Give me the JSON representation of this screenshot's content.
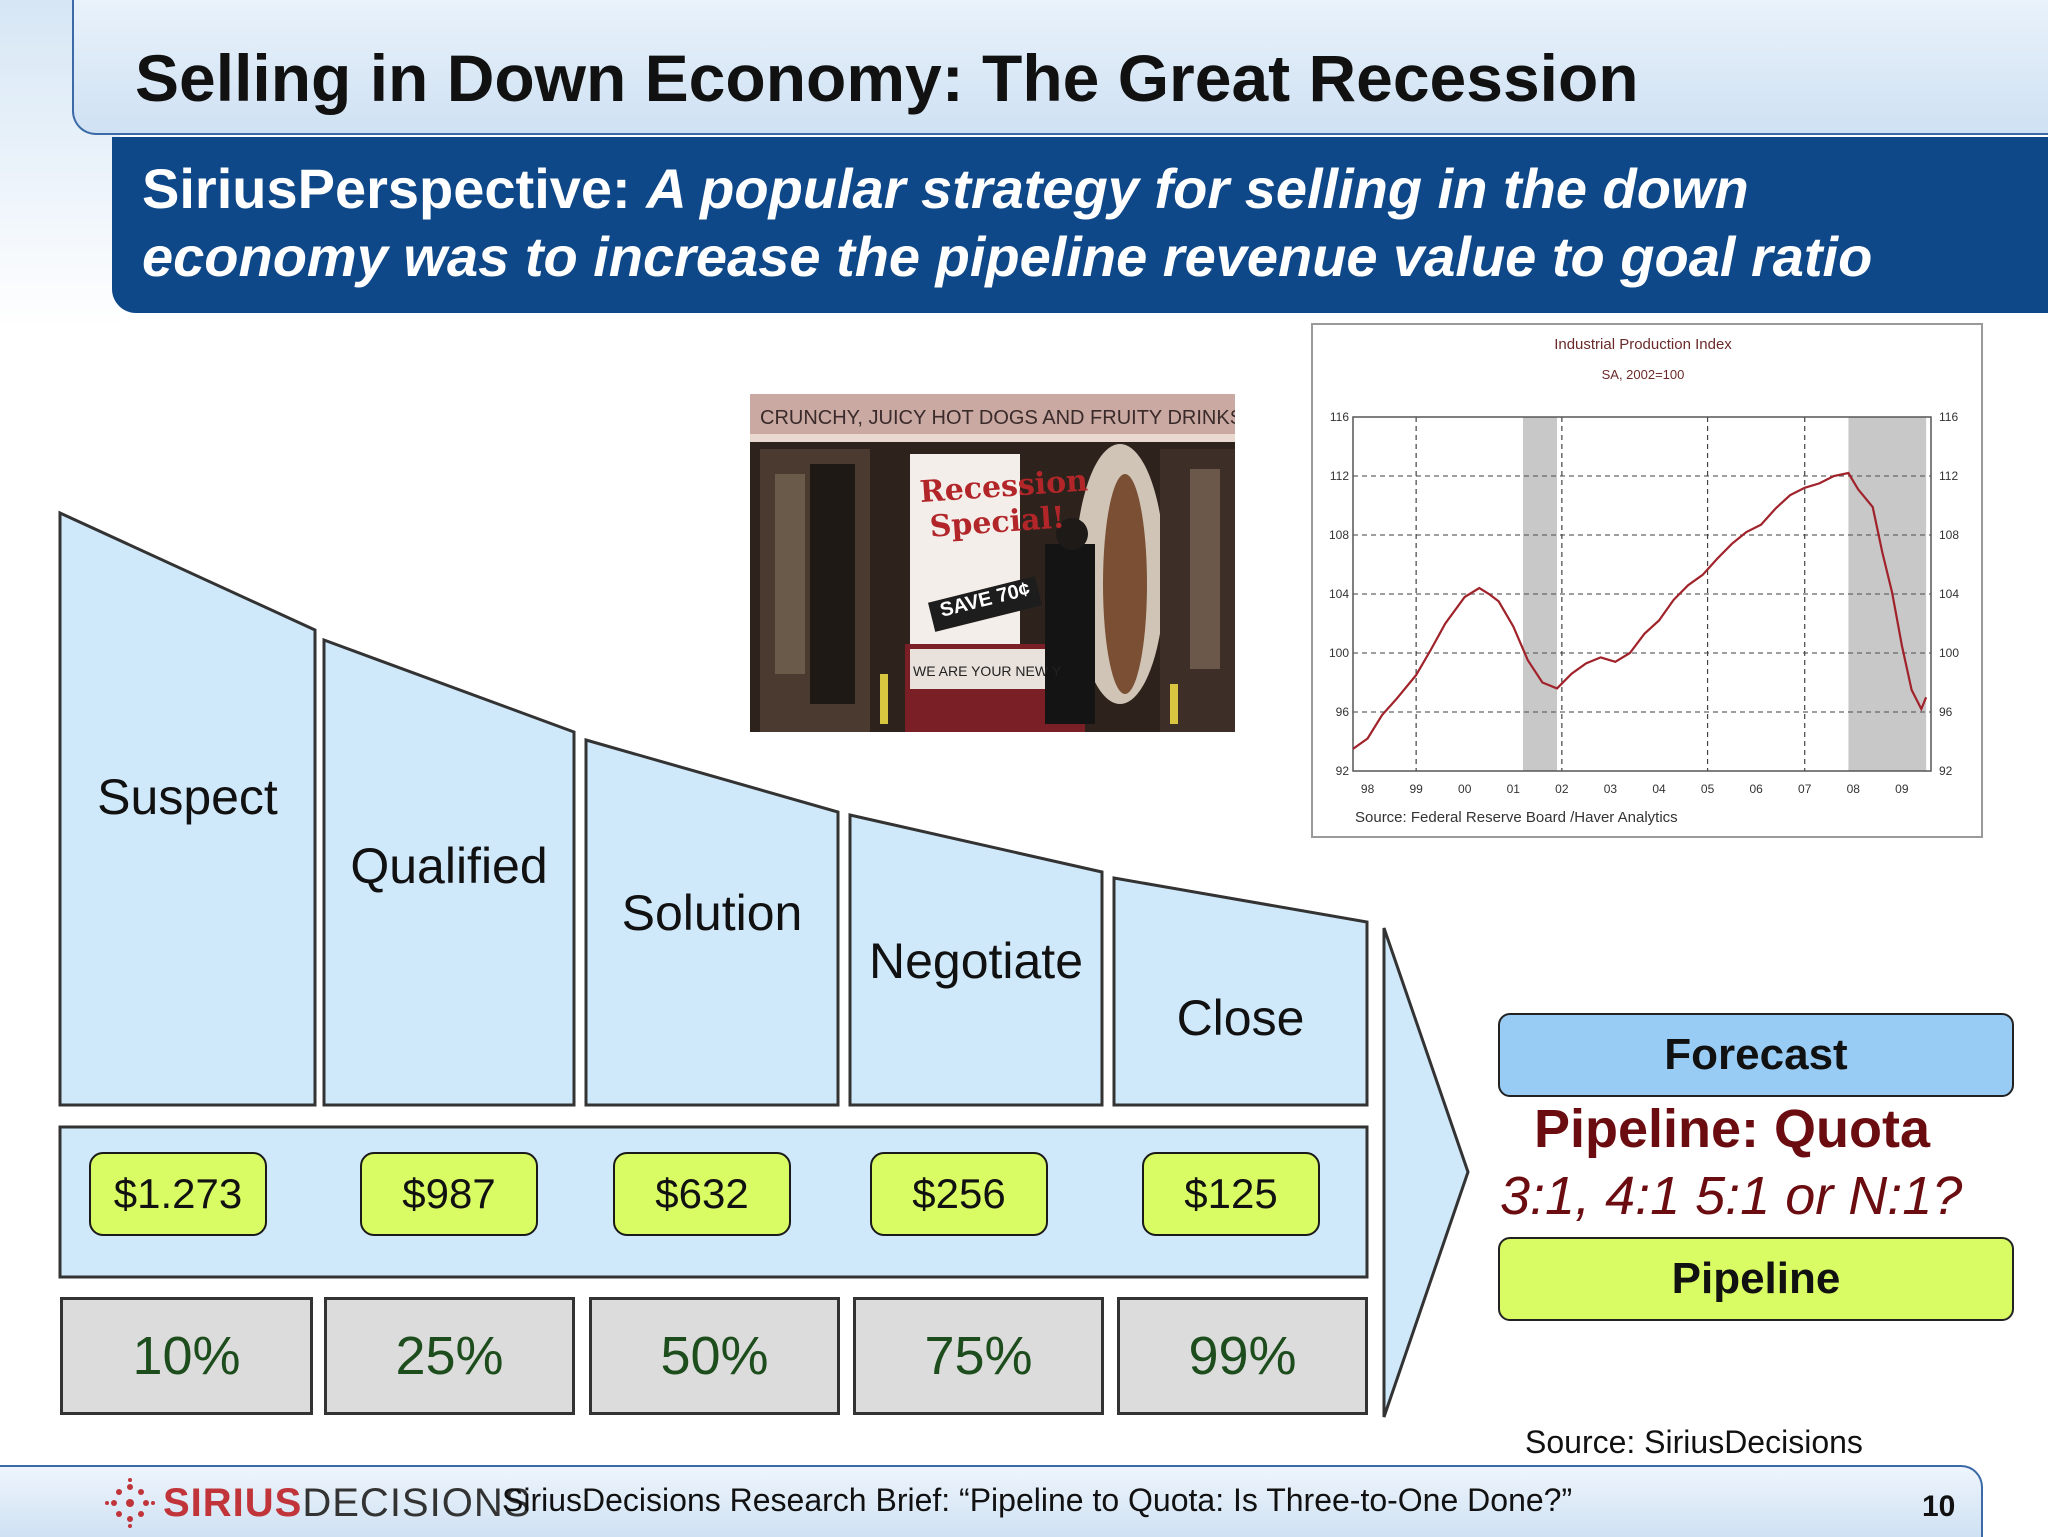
{
  "slide": {
    "title": "Selling in Down Economy: The Great Recession",
    "perspective_lead": "SiriusPerspective: ",
    "perspective_line1": "A popular strategy for selling in the down",
    "perspective_line2": "economy was to increase the pipeline revenue value to goal ratio"
  },
  "photo": {
    "sign_top": "CRUNCHY, JUICY HOT DOGS AND FRUITY DRINKS",
    "banner_line1": "Recession",
    "banner_line2": "Special!",
    "save": "SAVE 70¢",
    "bottom_sign": "WE ARE YOUR NEW Y"
  },
  "funnel": {
    "stages": [
      "Suspect",
      "Qualified",
      "Solution",
      "Negotiate",
      "Close"
    ],
    "values": [
      "$1.273",
      "$987",
      "$632",
      "$256",
      "$125"
    ],
    "percents": [
      "10%",
      "25%",
      "50%",
      "75%",
      "99%"
    ]
  },
  "right_panel": {
    "forecast": "Forecast",
    "ratio_title": "Pipeline: Quota",
    "ratio_options": "3:1, 4:1 5:1 or N:1?",
    "pipeline": "Pipeline",
    "source": "Source:  SiriusDecisions"
  },
  "footer": {
    "logo_bold": "SIRIUS",
    "logo_light": "DECISIONS",
    "brief": "SiriusDecisions Research Brief: “Pipeline to Quota: Is Three-to-One Done?”",
    "page_number": "10"
  },
  "chart_data": {
    "type": "line",
    "title": "Industrial Production Index",
    "subtitle": "SA, 2002=100",
    "source": "Source:  Federal Reserve Board /Haver Analytics",
    "x_ticks": [
      "98",
      "99",
      "00",
      "01",
      "02",
      "03",
      "04",
      "05",
      "06",
      "07",
      "08",
      "09"
    ],
    "y_ticks": [
      92,
      96,
      100,
      104,
      108,
      112,
      116
    ],
    "ylim": [
      92,
      116
    ],
    "xlim": [
      1997.7,
      2009.6
    ],
    "recession_shading": [
      [
        2001.2,
        2001.9
      ],
      [
        2007.9,
        2009.5
      ]
    ],
    "series": [
      {
        "color": "#a0222a",
        "x": [
          1997.7,
          1998.0,
          1998.3,
          1998.6,
          1999.0,
          1999.3,
          1999.6,
          2000.0,
          2000.3,
          2000.5,
          2000.7,
          2001.0,
          2001.3,
          2001.6,
          2001.9,
          2002.2,
          2002.5,
          2002.8,
          2003.1,
          2003.4,
          2003.7,
          2004.0,
          2004.3,
          2004.6,
          2004.9,
          2005.2,
          2005.5,
          2005.8,
          2006.1,
          2006.4,
          2006.7,
          2007.0,
          2007.3,
          2007.6,
          2007.9,
          2008.1,
          2008.4,
          2008.6,
          2008.8,
          2009.0,
          2009.2,
          2009.4,
          2009.5
        ],
        "values": [
          93.5,
          94.2,
          95.8,
          96.9,
          98.5,
          100.2,
          102.0,
          103.8,
          104.4,
          104.0,
          103.5,
          101.8,
          99.5,
          98.0,
          97.6,
          98.6,
          99.3,
          99.7,
          99.4,
          100.0,
          101.3,
          102.2,
          103.6,
          104.6,
          105.3,
          106.4,
          107.4,
          108.2,
          108.7,
          109.8,
          110.7,
          111.2,
          111.5,
          112.0,
          112.2,
          111.1,
          109.9,
          106.8,
          104.1,
          100.5,
          97.5,
          96.2,
          97.0
        ]
      }
    ]
  }
}
